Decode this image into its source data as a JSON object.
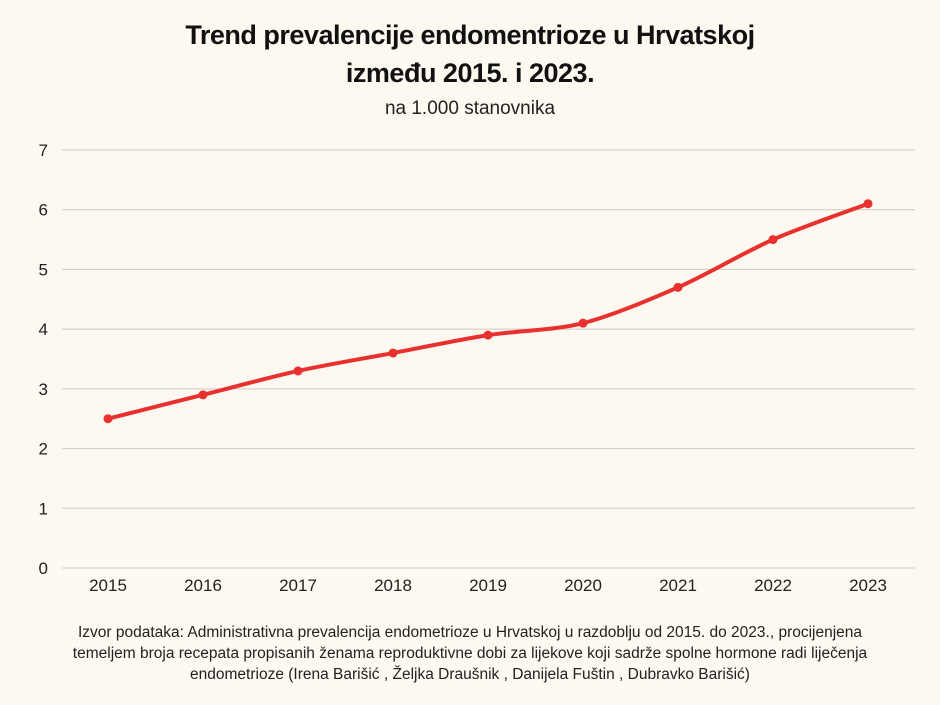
{
  "chart_data": {
    "type": "line",
    "title_line1": "Trend prevalencije endomentrioze u Hrvatskoj",
    "title_line2": "između 2015. i 2023.",
    "subtitle": "na 1.000 stanovnika",
    "categories": [
      "2015",
      "2016",
      "2017",
      "2018",
      "2019",
      "2020",
      "2021",
      "2022",
      "2023"
    ],
    "values": [
      2.5,
      2.9,
      3.3,
      3.6,
      3.9,
      4.1,
      4.7,
      5.5,
      6.1
    ],
    "y_ticks": [
      "0",
      "1",
      "2",
      "3",
      "4",
      "5",
      "6",
      "7"
    ],
    "ylim": [
      0,
      7
    ],
    "grid": true,
    "legend": "none",
    "line_color": "#e8312f",
    "grid_color": "#cfcac2"
  },
  "source": {
    "line1": "Izvor podataka: Administrativna prevalencija endometrioze u Hrvatskoj u razdoblju od 2015. do 2023., procijenjena",
    "line2": "temeljem broja recepata propisanih ženama reproduktivne dobi za lijekove koji sadrže spolne hormone radi liječenja",
    "line3": "endometrioze (Irena Barišić , Željka Draušnik , Danijela Fuštin , Dubravko Barišić)"
  }
}
